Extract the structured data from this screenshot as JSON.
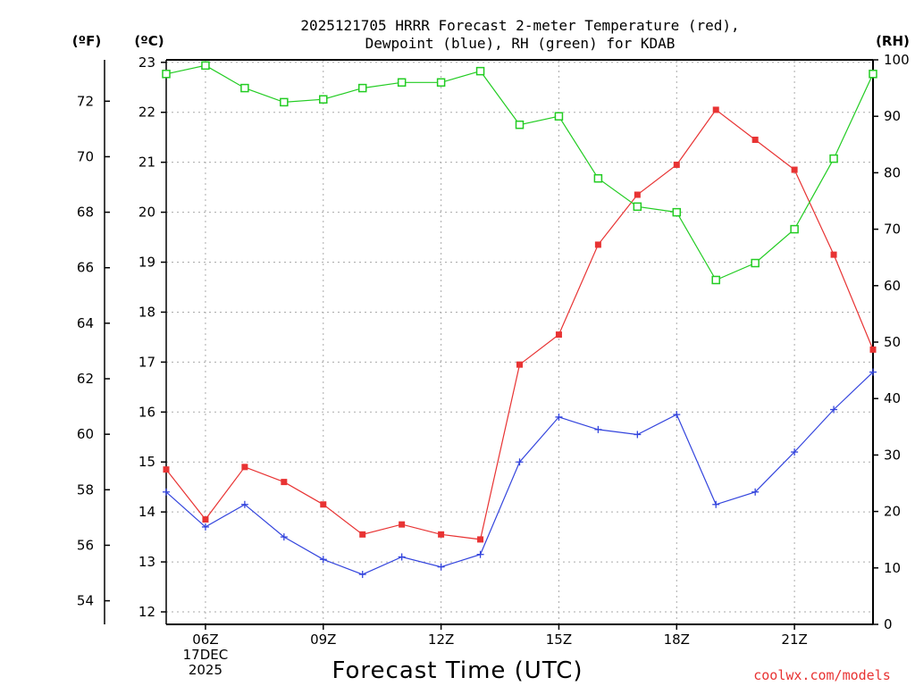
{
  "chart_data": {
    "type": "line",
    "title_line1": "2025121705 HRRR Forecast 2-meter Temperature (red),",
    "title_line2": "Dewpoint (blue), RH (green) for KDAB",
    "units": {
      "fahrenheit": "(ºF)",
      "celsius": "(ºC)",
      "rh": "(RH)"
    },
    "xlabel": "Forecast Time (UTC)",
    "credit": "coolwx.com/models",
    "x_hours": [
      5,
      6,
      7,
      8,
      9,
      10,
      11,
      12,
      13,
      14,
      15,
      16,
      17,
      18,
      19,
      20,
      21,
      22,
      23
    ],
    "x_ticks": [
      {
        "hour": 6,
        "lines": [
          "06Z",
          "17DEC",
          "2025"
        ]
      },
      {
        "hour": 9,
        "lines": [
          "09Z"
        ]
      },
      {
        "hour": 12,
        "lines": [
          "12Z"
        ]
      },
      {
        "hour": 15,
        "lines": [
          "15Z"
        ]
      },
      {
        "hour": 18,
        "lines": [
          "18Z"
        ]
      },
      {
        "hour": 21,
        "lines": [
          "21Z"
        ]
      }
    ],
    "xlim": [
      5,
      23
    ],
    "celsius_ylim": [
      11.75,
      23.05
    ],
    "celsius_ticks": [
      12,
      13,
      14,
      15,
      16,
      17,
      18,
      19,
      20,
      21,
      22,
      23
    ],
    "fahrenheit_ticks": [
      54,
      56,
      58,
      60,
      62,
      64,
      66,
      68,
      70,
      72
    ],
    "rh_ylim": [
      0,
      100
    ],
    "rh_ticks": [
      0,
      10,
      20,
      30,
      40,
      50,
      60,
      70,
      80,
      90,
      100
    ],
    "series": [
      {
        "name": "Temperature",
        "axis": "celsius",
        "color": "#e83333",
        "marker": "filled-square",
        "values": [
          14.85,
          13.85,
          14.9,
          14.6,
          14.15,
          13.55,
          13.75,
          13.55,
          13.45,
          16.95,
          17.55,
          19.35,
          20.35,
          20.95,
          22.05,
          21.45,
          20.85,
          19.15,
          17.25
        ]
      },
      {
        "name": "Dewpoint",
        "axis": "celsius",
        "color": "#3344dd",
        "marker": "plus",
        "values": [
          14.4,
          13.7,
          14.15,
          13.5,
          13.05,
          12.75,
          13.1,
          12.9,
          13.15,
          15.0,
          15.9,
          15.65,
          15.55,
          15.95,
          14.15,
          14.4,
          15.2,
          16.05,
          16.8
        ]
      },
      {
        "name": "Relative Humidity",
        "axis": "rh",
        "color": "#22cc22",
        "marker": "open-square",
        "values": [
          97.5,
          99,
          95,
          92.5,
          93,
          95,
          96,
          96,
          98,
          88.5,
          90,
          79,
          74,
          73,
          61,
          64,
          70,
          82.5,
          97.5
        ]
      }
    ]
  }
}
